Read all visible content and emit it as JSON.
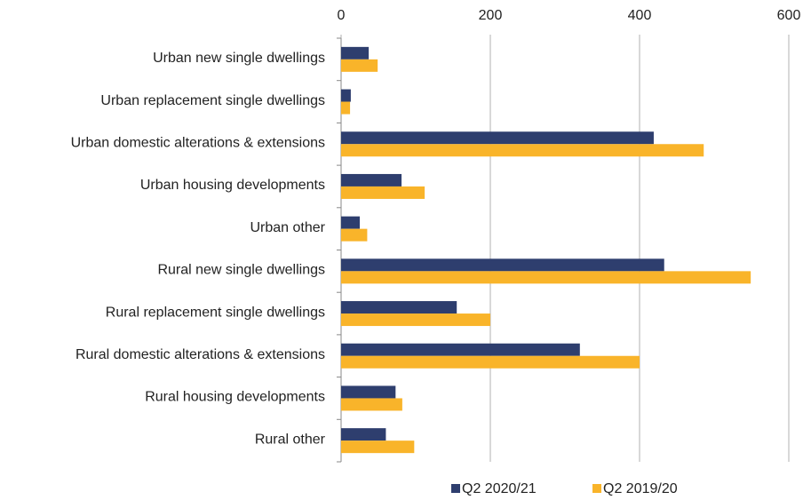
{
  "chart_data": {
    "type": "hbar",
    "categories": [
      "Urban new single dwellings",
      "Urban replacement single dwellings",
      "Urban domestic alterations & extensions",
      "Urban housing developments",
      "Urban other",
      "Rural new single dwellings",
      "Rural replacement single dwellings",
      "Rural domestic alterations & extensions",
      "Rural housing developments",
      "Rural other"
    ],
    "series": [
      {
        "name": "Q2 2020/21",
        "color": "#2e3e6e",
        "values": [
          37,
          13,
          419,
          81,
          25,
          433,
          155,
          320,
          73,
          60
        ]
      },
      {
        "name": "Q2 2019/20",
        "color": "#f9b42a",
        "values": [
          49,
          12,
          486,
          112,
          35,
          549,
          200,
          400,
          82,
          98
        ]
      }
    ],
    "xlim": [
      0,
      600
    ],
    "xticks": [
      0,
      200,
      400,
      600
    ],
    "grid": true,
    "legend": "bottom"
  }
}
